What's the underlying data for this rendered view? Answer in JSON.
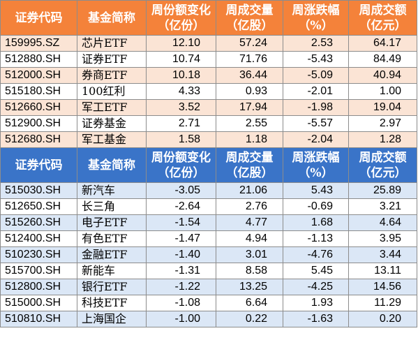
{
  "headers": [
    "证券代码",
    "基金简称",
    [
      "周份额变化",
      "（亿份）"
    ],
    [
      "周成交量",
      "（亿股）"
    ],
    [
      "周涨跌幅",
      "（%）"
    ],
    [
      "周成交额",
      "（亿元）"
    ]
  ],
  "colors": {
    "top_header": "#f4823a",
    "top_tint": "#fbe4d5",
    "bottom_header": "#3a74c8",
    "bottom_tint": "#dbe7f6"
  },
  "top_rows": [
    [
      "159995.SZ",
      "芯片ETF",
      "12.10",
      "57.24",
      "2.53",
      "64.17"
    ],
    [
      "512880.SH",
      "证券ETF",
      "10.74",
      "71.76",
      "-5.43",
      "84.49"
    ],
    [
      "512000.SH",
      "券商ETF",
      "10.18",
      "36.44",
      "-5.09",
      "40.94"
    ],
    [
      "515180.SH",
      "100红利",
      "4.33",
      "0.93",
      "-2.01",
      "1.00"
    ],
    [
      "512660.SH",
      "军工ETF",
      "3.52",
      "17.94",
      "-1.98",
      "19.04"
    ],
    [
      "512900.SH",
      "证券基金",
      "2.71",
      "2.55",
      "-5.57",
      "2.97"
    ],
    [
      "512680.SH",
      "军工基金",
      "1.58",
      "1.18",
      "-2.04",
      "1.28"
    ]
  ],
  "bottom_rows": [
    [
      "515030.SH",
      "新汽车",
      "-3.05",
      "21.06",
      "5.43",
      "25.89"
    ],
    [
      "512650.SH",
      "长三角",
      "-2.64",
      "2.76",
      "-0.69",
      "3.21"
    ],
    [
      "515260.SH",
      "电子ETF",
      "-1.54",
      "4.77",
      "1.68",
      "4.64"
    ],
    [
      "512400.SH",
      "有色ETF",
      "-1.47",
      "4.94",
      "-1.13",
      "3.95"
    ],
    [
      "510230.SH",
      "金融ETF",
      "-1.40",
      "3.01",
      "-4.76",
      "3.44"
    ],
    [
      "515700.SH",
      "新能车",
      "-1.31",
      "8.58",
      "5.45",
      "13.11"
    ],
    [
      "512800.SH",
      "银行ETF",
      "-1.22",
      "13.25",
      "-4.25",
      "14.56"
    ],
    [
      "515000.SH",
      "科技ETF",
      "-1.08",
      "6.64",
      "1.93",
      "11.29"
    ],
    [
      "510810.SH",
      "上海国企",
      "-1.00",
      "0.22",
      "-1.63",
      "0.20"
    ]
  ]
}
